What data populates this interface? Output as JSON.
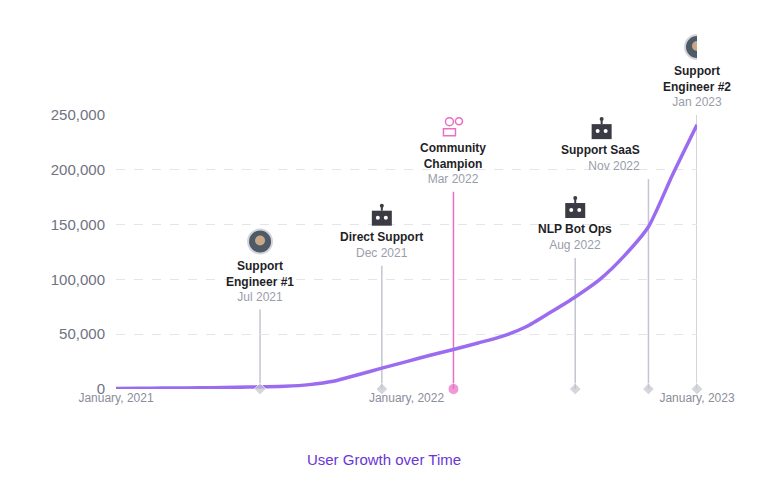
{
  "chart_data": {
    "type": "line",
    "title": "User Growth over Time",
    "x": [
      "2021-01",
      "2021-02",
      "2021-03",
      "2021-04",
      "2021-05",
      "2021-06",
      "2021-07",
      "2021-08",
      "2021-09",
      "2021-10",
      "2021-11",
      "2021-12",
      "2022-01",
      "2022-02",
      "2022-03",
      "2022-04",
      "2022-05",
      "2022-06",
      "2022-07",
      "2022-08",
      "2022-09",
      "2022-10",
      "2022-11",
      "2022-12",
      "2023-01"
    ],
    "values": [
      500,
      600,
      800,
      1000,
      1200,
      1500,
      2000,
      2500,
      4000,
      7000,
      13000,
      19000,
      25000,
      31000,
      36000,
      42000,
      48000,
      57000,
      70000,
      84000,
      100000,
      121000,
      148000,
      195000,
      241000
    ],
    "color": "#9b6cf0",
    "xlim": [
      "2021-01",
      "2023-01"
    ],
    "xticks": [
      {
        "value": "2021-01",
        "label": "January, 2021"
      },
      {
        "value": "2022-01",
        "label": "January, 2022"
      },
      {
        "value": "2023-01",
        "label": "January, 2023"
      }
    ],
    "ylim": [
      0,
      250000
    ],
    "yticks": [
      0,
      {
        "value": 50000,
        "label": "50,000"
      },
      {
        "value": 100000,
        "label": "100,000"
      },
      {
        "value": 150000,
        "label": "150,000"
      },
      {
        "value": 200000,
        "label": "200,000"
      },
      {
        "value": 250000,
        "label": "250,000"
      }
    ],
    "grid": true,
    "annotations": [
      {
        "text": "Support Engineer #1",
        "date": "Jul 2021",
        "x": "2021-07",
        "color": "#c3c6ce",
        "marker": "diamond"
      },
      {
        "text": "Direct Support",
        "date": "Dec 2021",
        "x": "2021-12",
        "color": "#c3c6ce",
        "marker": "diamond"
      },
      {
        "text": "Community Champion",
        "date": "Mar 2022",
        "x": "2022-03",
        "color": "#e86fc6",
        "marker": "circle"
      },
      {
        "text": "NLP Bot Ops",
        "date": "Aug 2022",
        "x": "2022-08",
        "color": "#c3c6ce",
        "marker": "diamond"
      },
      {
        "text": "Support SaaS",
        "date": "Nov 2022",
        "x": "2022-11",
        "color": "#c3c6ce",
        "marker": "diamond"
      },
      {
        "text": "Support Engineer #2",
        "date": "Jan 2023",
        "x": "2023-01",
        "color": "#c3c6ce",
        "marker": "diamond"
      }
    ]
  }
}
